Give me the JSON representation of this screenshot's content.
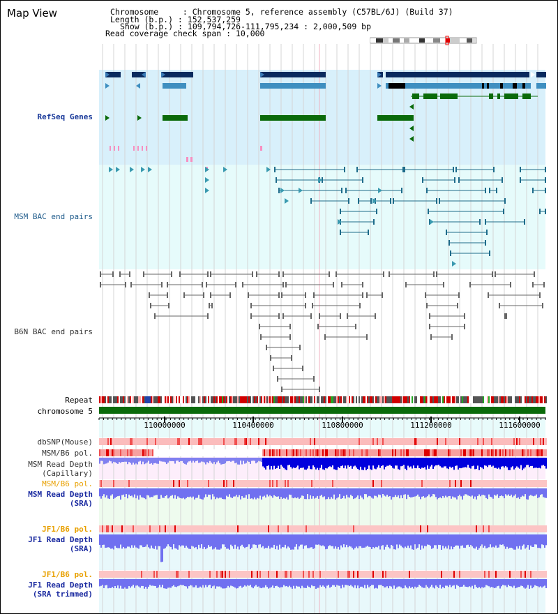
{
  "title": "Map View",
  "info": {
    "chromosome_line": "Chromosome     : Chromosome 5, reference assembly (C57BL/6J) (Build 37)",
    "length_line": "Length (b.p.) : 152,537,259",
    "show_line": "Show (b.p.) : 109,794,726-111,795,234 : 2,000,509 bp",
    "coverage_line": "Read coverage check span : 10,000"
  },
  "tracks": {
    "refseq": "RefSeq Genes",
    "msm_bac": "MSM BAC end pairs",
    "b6n_bac": "B6N BAC end pairs",
    "repeat": "Repeat",
    "chromosome": "chromosome 5",
    "dbsnp": "dbSNP(Mouse)",
    "msm_b6_pol_1": "MSM/B6 pol.",
    "msm_read_depth_cap": "MSM Read Depth\n(Capillary)",
    "msm_b6_pol_2": "MSM/B6 pol.",
    "msm_read_depth_sra": "MSM Read Depth\n(SRA)",
    "jf1_b6_pol_1": "JF1/B6 pol.",
    "jf1_read_depth_sra": "JF1 Read Depth\n(SRA)",
    "jf1_b6_pol_2": "JF1/B6 pol.",
    "jf1_read_depth_trim": "JF1 Read Depth\n(SRA trimmed)"
  },
  "axis": {
    "ticks": [
      "110000000",
      "110400000",
      "110800000",
      "111200000",
      "111600000"
    ]
  },
  "colors": {
    "refseq_bg": "#d8f0fb",
    "bac_bg": "#e6fbfb",
    "gene_dark": "#0a2a5e",
    "gene_mid": "#3f8fc0",
    "gene_green": "#0a6a0a",
    "bac_line": "#1d6b8a",
    "b6n_line": "#666666",
    "chrom_green": "#0a6a0a",
    "depth_blue": "#0000dd",
    "depth_light": "#7070f0"
  }
}
